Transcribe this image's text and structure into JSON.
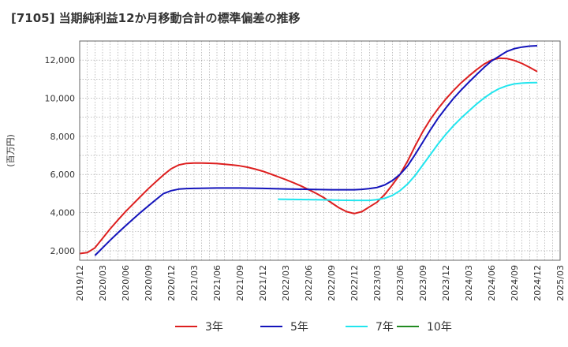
{
  "title": "[7105]  当期純利益12か月移動合計の標準偏差の推移",
  "chart_data": {
    "type": "line",
    "ylabel": "(百万円)",
    "xlabel": "",
    "ylim": [
      1500,
      13000
    ],
    "yticks": [
      2000,
      4000,
      6000,
      8000,
      10000,
      12000
    ],
    "ytick_labels": [
      "2,000",
      "4,000",
      "6,000",
      "8,000",
      "10,000",
      "12,000"
    ],
    "xlim": [
      "2019-12",
      "2025-03"
    ],
    "xtick_labels": [
      "2019/12",
      "2020/03",
      "2020/06",
      "2020/09",
      "2020/12",
      "2021/03",
      "2021/06",
      "2021/09",
      "2021/12",
      "2022/03",
      "2022/06",
      "2022/09",
      "2022/12",
      "2023/03",
      "2023/06",
      "2023/09",
      "2023/12",
      "2024/03",
      "2024/06",
      "2024/09",
      "2024/12",
      "2025/03"
    ],
    "grid": true,
    "legend_position": "bottom",
    "series": [
      {
        "name": "3年",
        "color": "#dd1f1f",
        "points": [
          [
            "2019-12",
            1850
          ],
          [
            "2020-01",
            1900
          ],
          [
            "2020-02",
            2150
          ],
          [
            "2020-03",
            2650
          ],
          [
            "2020-04",
            3150
          ],
          [
            "2020-05",
            3600
          ],
          [
            "2020-06",
            4050
          ],
          [
            "2020-07",
            4450
          ],
          [
            "2020-08",
            4850
          ],
          [
            "2020-09",
            5250
          ],
          [
            "2020-10",
            5620
          ],
          [
            "2020-11",
            5980
          ],
          [
            "2020-12",
            6300
          ],
          [
            "2021-01",
            6500
          ],
          [
            "2021-02",
            6580
          ],
          [
            "2021-03",
            6600
          ],
          [
            "2021-04",
            6600
          ],
          [
            "2021-05",
            6590
          ],
          [
            "2021-06",
            6570
          ],
          [
            "2021-07",
            6540
          ],
          [
            "2021-08",
            6500
          ],
          [
            "2021-09",
            6450
          ],
          [
            "2021-10",
            6380
          ],
          [
            "2021-11",
            6280
          ],
          [
            "2021-12",
            6170
          ],
          [
            "2022-01",
            6030
          ],
          [
            "2022-02",
            5880
          ],
          [
            "2022-03",
            5730
          ],
          [
            "2022-04",
            5570
          ],
          [
            "2022-05",
            5400
          ],
          [
            "2022-06",
            5210
          ],
          [
            "2022-07",
            5010
          ],
          [
            "2022-08",
            4790
          ],
          [
            "2022-09",
            4520
          ],
          [
            "2022-10",
            4250
          ],
          [
            "2022-11",
            4050
          ],
          [
            "2022-12",
            3950
          ],
          [
            "2023-01",
            4050
          ],
          [
            "2023-02",
            4300
          ],
          [
            "2023-03",
            4550
          ],
          [
            "2023-04",
            4950
          ],
          [
            "2023-05",
            5450
          ],
          [
            "2023-06",
            6000
          ],
          [
            "2023-07",
            6700
          ],
          [
            "2023-08",
            7500
          ],
          [
            "2023-09",
            8250
          ],
          [
            "2023-10",
            8900
          ],
          [
            "2023-11",
            9450
          ],
          [
            "2023-12",
            9950
          ],
          [
            "2024-01",
            10400
          ],
          [
            "2024-02",
            10800
          ],
          [
            "2024-03",
            11150
          ],
          [
            "2024-04",
            11480
          ],
          [
            "2024-05",
            11780
          ],
          [
            "2024-06",
            12000
          ],
          [
            "2024-07",
            12100
          ],
          [
            "2024-08",
            12080
          ],
          [
            "2024-09",
            11980
          ],
          [
            "2024-10",
            11820
          ],
          [
            "2024-11",
            11620
          ],
          [
            "2024-12",
            11400
          ]
        ]
      },
      {
        "name": "5年",
        "color": "#1414bb",
        "points": [
          [
            "2020-02",
            1750
          ],
          [
            "2020-03",
            2150
          ],
          [
            "2020-04",
            2550
          ],
          [
            "2020-05",
            2930
          ],
          [
            "2020-06",
            3300
          ],
          [
            "2020-07",
            3660
          ],
          [
            "2020-08",
            4010
          ],
          [
            "2020-09",
            4350
          ],
          [
            "2020-10",
            4680
          ],
          [
            "2020-11",
            5000
          ],
          [
            "2020-12",
            5150
          ],
          [
            "2021-01",
            5230
          ],
          [
            "2021-02",
            5260
          ],
          [
            "2021-03",
            5270
          ],
          [
            "2021-06",
            5290
          ],
          [
            "2021-09",
            5290
          ],
          [
            "2021-12",
            5270
          ],
          [
            "2022-03",
            5240
          ],
          [
            "2022-06",
            5220
          ],
          [
            "2022-09",
            5200
          ],
          [
            "2022-12",
            5200
          ],
          [
            "2023-01",
            5220
          ],
          [
            "2023-02",
            5260
          ],
          [
            "2023-03",
            5320
          ],
          [
            "2023-04",
            5450
          ],
          [
            "2023-05",
            5680
          ],
          [
            "2023-06",
            6000
          ],
          [
            "2023-07",
            6450
          ],
          [
            "2023-08",
            7050
          ],
          [
            "2023-09",
            7700
          ],
          [
            "2023-10",
            8350
          ],
          [
            "2023-11",
            8950
          ],
          [
            "2023-12",
            9480
          ],
          [
            "2024-01",
            9980
          ],
          [
            "2024-02",
            10420
          ],
          [
            "2024-03",
            10830
          ],
          [
            "2024-04",
            11220
          ],
          [
            "2024-05",
            11600
          ],
          [
            "2024-06",
            11950
          ],
          [
            "2024-07",
            12200
          ],
          [
            "2024-08",
            12450
          ],
          [
            "2024-09",
            12600
          ],
          [
            "2024-10",
            12680
          ],
          [
            "2024-11",
            12730
          ],
          [
            "2024-12",
            12750
          ]
        ]
      },
      {
        "name": "7年",
        "color": "#22e5ee",
        "points": [
          [
            "2022-02",
            4700
          ],
          [
            "2022-04",
            4690
          ],
          [
            "2022-06",
            4680
          ],
          [
            "2022-08",
            4670
          ],
          [
            "2022-10",
            4650
          ],
          [
            "2022-12",
            4640
          ],
          [
            "2023-02",
            4640
          ],
          [
            "2023-03",
            4680
          ],
          [
            "2023-04",
            4750
          ],
          [
            "2023-05",
            4900
          ],
          [
            "2023-06",
            5150
          ],
          [
            "2023-07",
            5500
          ],
          [
            "2023-08",
            5950
          ],
          [
            "2023-09",
            6500
          ],
          [
            "2023-10",
            7050
          ],
          [
            "2023-11",
            7600
          ],
          [
            "2023-12",
            8100
          ],
          [
            "2024-01",
            8550
          ],
          [
            "2024-02",
            8950
          ],
          [
            "2024-03",
            9320
          ],
          [
            "2024-04",
            9680
          ],
          [
            "2024-05",
            10000
          ],
          [
            "2024-06",
            10280
          ],
          [
            "2024-07",
            10500
          ],
          [
            "2024-08",
            10650
          ],
          [
            "2024-09",
            10750
          ],
          [
            "2024-10",
            10790
          ],
          [
            "2024-11",
            10810
          ],
          [
            "2024-12",
            10820
          ]
        ]
      },
      {
        "name": "10年",
        "color": "#228b22",
        "points": []
      }
    ]
  }
}
